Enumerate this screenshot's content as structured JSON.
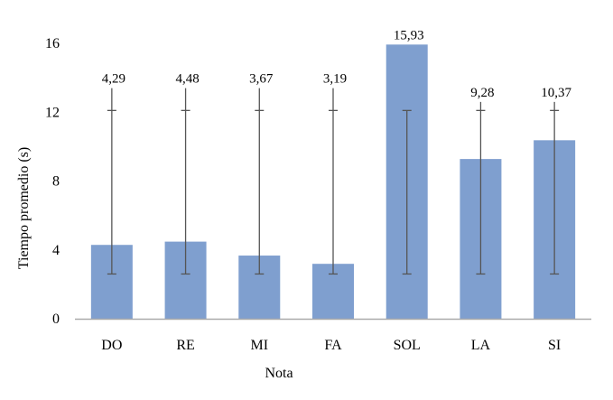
{
  "chart_data": {
    "type": "bar",
    "title": "",
    "xlabel": "Nota",
    "ylabel": "Tiempo promedio (s)",
    "ylim": [
      0,
      16
    ],
    "yticks": [
      0,
      4,
      8,
      12,
      16
    ],
    "categories": [
      "DO",
      "RE",
      "MI",
      "FA",
      "SOL",
      "LA",
      "SI"
    ],
    "values": [
      4.29,
      4.48,
      3.67,
      3.19,
      15.93,
      9.28,
      10.37
    ],
    "data_labels": [
      "4,29",
      "4,48",
      "3,67",
      "3,19",
      "15,93",
      "9,28",
      "10,37"
    ],
    "error_bars": [
      {
        "low": 2.6,
        "high": 13.4
      },
      {
        "low": 2.6,
        "high": 13.4
      },
      {
        "low": 2.6,
        "high": 13.4
      },
      {
        "low": 2.6,
        "high": 13.4
      },
      {
        "low": 2.6,
        "high": 12.1
      },
      {
        "low": 2.6,
        "high": 12.6
      },
      {
        "low": 2.6,
        "high": 12.6
      }
    ],
    "error_bar_cap_value": 12.1,
    "bar_color": "#7f9fcf",
    "error_bar_color": "#555555",
    "axis_color": "#aaaaaa",
    "grid": false,
    "legend": "none"
  }
}
